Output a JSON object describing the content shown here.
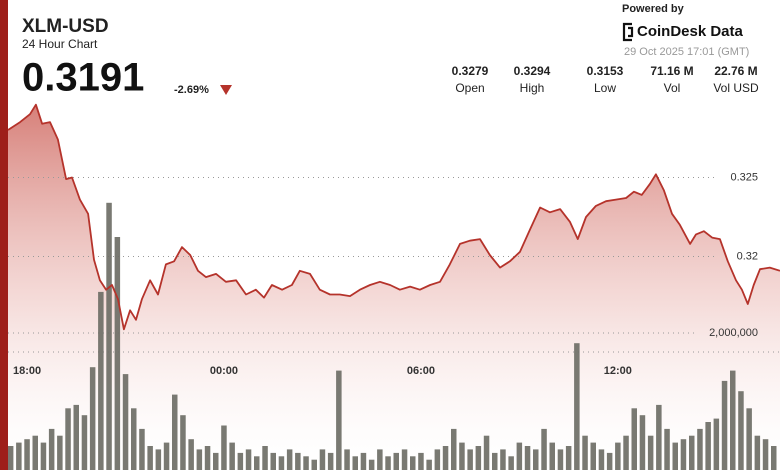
{
  "chart_data": {
    "type": "line",
    "title": "XLM-USD",
    "subtitle": "24 Hour Chart",
    "price": 0.3191,
    "change": "-2.69%",
    "stats": [
      {
        "value": 0.3279,
        "label": "Open"
      },
      {
        "value": 0.3294,
        "label": "High"
      },
      {
        "value": 0.3153,
        "label": "Low"
      },
      {
        "value": "71.16 M",
        "label": "Vol"
      },
      {
        "value": "22.76 M",
        "label": "Vol USD"
      }
    ],
    "powered_by": "Powered by",
    "brand": "CoinDesk Data",
    "timestamp": "29 Oct 2025 17:01 (GMT)",
    "xlim": [
      -0.58,
      22.94
    ],
    "xticks": [
      {
        "value": 0,
        "label": "18:00"
      },
      {
        "value": 6,
        "label": "00:00"
      },
      {
        "value": 12,
        "label": "06:00"
      },
      {
        "value": 18,
        "label": "12:00"
      }
    ],
    "ylim": [
      0.3065,
      0.3299
    ],
    "yticks": [
      0.32,
      0.325
    ],
    "y2lim": [
      0,
      5400000
    ],
    "y2ticks": [
      {
        "value": 2000000,
        "label": "2,000,000"
      }
    ],
    "grid": true,
    "series": [
      {
        "color": "#b5332b",
        "x": [
          -0.58,
          -0.21,
          0.09,
          0.27,
          0.46,
          0.7,
          0.94,
          1.19,
          1.37,
          1.61,
          1.86,
          2.04,
          2.22,
          2.41,
          2.59,
          2.77,
          2.95,
          3.14,
          3.32,
          3.5,
          3.75,
          3.99,
          4.23,
          4.48,
          4.72,
          4.97,
          5.21,
          5.45,
          5.76,
          6.06,
          6.37,
          6.67,
          6.97,
          7.22,
          7.46,
          7.77,
          8.07,
          8.31,
          8.62,
          8.92,
          9.23,
          9.53,
          9.84,
          10.14,
          10.45,
          10.75,
          11.06,
          11.36,
          11.67,
          11.97,
          12.28,
          12.58,
          12.88,
          13.19,
          13.49,
          13.8,
          14.1,
          14.41,
          14.71,
          15.02,
          15.32,
          15.63,
          15.93,
          16.24,
          16.54,
          16.78,
          17.03,
          17.33,
          17.64,
          17.94,
          18.25,
          18.49,
          18.73,
          18.98,
          19.16,
          19.4,
          19.65,
          19.89,
          20.2,
          20.38,
          20.62,
          20.87,
          21.11,
          21.35,
          21.6,
          21.78,
          21.96,
          22.14,
          22.33,
          22.63,
          22.94
        ],
        "values": [
          0.328,
          0.3285,
          0.329,
          0.3296,
          0.3284,
          0.3285,
          0.3274,
          0.3249,
          0.325,
          0.3236,
          0.3227,
          0.3198,
          0.3185,
          0.3179,
          0.3182,
          0.3173,
          0.3154,
          0.3166,
          0.316,
          0.3173,
          0.3185,
          0.3176,
          0.3195,
          0.3197,
          0.3206,
          0.3201,
          0.3191,
          0.3187,
          0.3189,
          0.3184,
          0.3185,
          0.3176,
          0.3179,
          0.3174,
          0.3182,
          0.3179,
          0.3182,
          0.3191,
          0.3189,
          0.3179,
          0.3176,
          0.3176,
          0.3175,
          0.3179,
          0.3182,
          0.3184,
          0.3182,
          0.3179,
          0.3181,
          0.3179,
          0.3182,
          0.3184,
          0.3195,
          0.3208,
          0.321,
          0.3211,
          0.3201,
          0.3193,
          0.3197,
          0.3203,
          0.3217,
          0.3231,
          0.3228,
          0.323,
          0.3222,
          0.3211,
          0.3225,
          0.3232,
          0.3235,
          0.3236,
          0.3237,
          0.3241,
          0.3239,
          0.3246,
          0.3252,
          0.3242,
          0.3227,
          0.322,
          0.3208,
          0.3214,
          0.3216,
          0.3212,
          0.3211,
          0.3197,
          0.3185,
          0.3179,
          0.317,
          0.3182,
          0.3192,
          0.3193,
          0.3191
        ]
      },
      {
        "type": "bar",
        "axis": "y2",
        "color": "#6e6e66",
        "x": [
          -0.5,
          -0.25,
          0,
          0.25,
          0.5,
          0.75,
          1,
          1.25,
          1.5,
          1.75,
          2,
          2.25,
          2.5,
          2.75,
          3,
          3.25,
          3.5,
          3.75,
          4,
          4.25,
          4.5,
          4.75,
          5,
          5.25,
          5.5,
          5.75,
          6,
          6.25,
          6.5,
          6.75,
          7,
          7.25,
          7.5,
          7.75,
          8,
          8.25,
          8.5,
          8.75,
          9,
          9.25,
          9.5,
          9.75,
          10,
          10.25,
          10.5,
          10.75,
          11,
          11.25,
          11.5,
          11.75,
          12,
          12.25,
          12.5,
          12.75,
          13,
          13.25,
          13.5,
          13.75,
          14,
          14.25,
          14.5,
          14.75,
          15,
          15.25,
          15.5,
          15.75,
          16,
          16.25,
          16.5,
          16.75,
          17,
          17.25,
          17.5,
          17.75,
          18,
          18.25,
          18.5,
          18.75,
          19,
          19.25,
          19.5,
          19.75,
          20,
          20.25,
          20.5,
          20.75,
          21,
          21.25,
          21.5,
          21.75,
          22,
          22.25,
          22.5,
          22.75
        ],
        "values": [
          350000,
          400000,
          450000,
          500000,
          400000,
          600000,
          500000,
          900000,
          950000,
          800000,
          1500000,
          2600000,
          3900000,
          3400000,
          1400000,
          900000,
          600000,
          350000,
          300000,
          400000,
          1100000,
          800000,
          450000,
          300000,
          350000,
          250000,
          650000,
          400000,
          250000,
          300000,
          200000,
          350000,
          250000,
          200000,
          300000,
          250000,
          200000,
          150000,
          300000,
          250000,
          1450000,
          300000,
          200000,
          250000,
          150000,
          300000,
          200000,
          250000,
          300000,
          200000,
          250000,
          150000,
          300000,
          350000,
          600000,
          400000,
          300000,
          350000,
          500000,
          250000,
          300000,
          200000,
          400000,
          350000,
          300000,
          600000,
          400000,
          300000,
          350000,
          1850000,
          500000,
          400000,
          300000,
          250000,
          400000,
          500000,
          900000,
          800000,
          500000,
          950000,
          600000,
          400000,
          450000,
          500000,
          600000,
          700000,
          750000,
          1300000,
          1450000,
          1150000,
          900000,
          500000,
          450000,
          350000
        ]
      }
    ]
  }
}
